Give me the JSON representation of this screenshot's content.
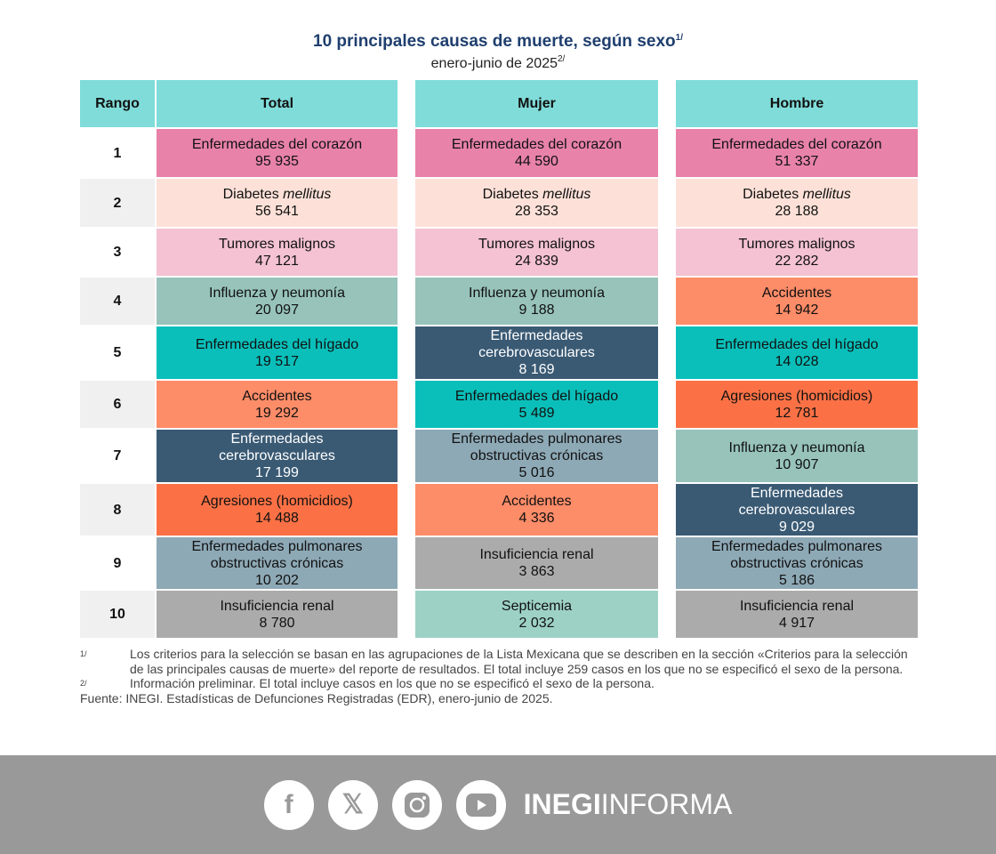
{
  "title": "10 principales causas de muerte, según sexo",
  "title_sup": "1/",
  "subtitle": "enero-junio de 2025",
  "subtitle_sup": "2/",
  "headers": {
    "rank": "Rango",
    "total": "Total",
    "mujer": "Mujer",
    "hombre": "Hombre"
  },
  "colors": {
    "corazon": "#e882a8",
    "diabetes": "#fde1d8",
    "tumores": "#f4c2d2",
    "influenza": "#97c3bb",
    "higado": "#0abfba",
    "cerebro": "#3a5a74",
    "accidentes": "#fd8c68",
    "agresiones": "#fb7145",
    "pulmonares": "#8ea9b6",
    "renal": "#ababab",
    "septicemia": "#9dd1c6",
    "header": "#80dcd9"
  },
  "rows": [
    {
      "rank": "1",
      "total": {
        "label": "Enfermedades del corazón",
        "value": "95 935",
        "cat": "corazon"
      },
      "mujer": {
        "label": "Enfermedades del corazón",
        "value": "44 590",
        "cat": "corazon"
      },
      "hombre": {
        "label": "Enfermedades del corazón",
        "value": "51 337",
        "cat": "corazon"
      }
    },
    {
      "rank": "2",
      "total": {
        "label": "Diabetes ",
        "italic": "mellitus",
        "value": "56 541",
        "cat": "diabetes"
      },
      "mujer": {
        "label": "Diabetes ",
        "italic": "mellitus",
        "value": "28 353",
        "cat": "diabetes"
      },
      "hombre": {
        "label": "Diabetes ",
        "italic": "mellitus",
        "value": "28 188",
        "cat": "diabetes"
      }
    },
    {
      "rank": "3",
      "total": {
        "label": "Tumores malignos",
        "value": "47 121",
        "cat": "tumores"
      },
      "mujer": {
        "label": "Tumores malignos",
        "value": "24 839",
        "cat": "tumores"
      },
      "hombre": {
        "label": "Tumores malignos",
        "value": "22 282",
        "cat": "tumores"
      }
    },
    {
      "rank": "4",
      "total": {
        "label": "Influenza y neumonía",
        "value": "20 097",
        "cat": "influenza"
      },
      "mujer": {
        "label": "Influenza y neumonía",
        "value": "9 188",
        "cat": "influenza"
      },
      "hombre": {
        "label": "Accidentes",
        "value": "14 942",
        "cat": "accidentes"
      }
    },
    {
      "rank": "5",
      "total": {
        "label": "Enfermedades del hígado",
        "value": "19 517",
        "cat": "higado"
      },
      "mujer": {
        "label": "Enfermedades\ncerebrovasculares",
        "value": "8 169",
        "cat": "cerebro"
      },
      "hombre": {
        "label": "Enfermedades del hígado",
        "value": "14 028",
        "cat": "higado"
      }
    },
    {
      "rank": "6",
      "total": {
        "label": "Accidentes",
        "value": "19 292",
        "cat": "accidentes"
      },
      "mujer": {
        "label": "Enfermedades del hígado",
        "value": "5 489",
        "cat": "higado"
      },
      "hombre": {
        "label": "Agresiones (homicidios)",
        "value": "12 781",
        "cat": "agresiones"
      }
    },
    {
      "rank": "7",
      "total": {
        "label": "Enfermedades\ncerebrovasculares",
        "value": "17 199",
        "cat": "cerebro"
      },
      "mujer": {
        "label": "Enfermedades pulmonares\nobstructivas crónicas",
        "value": "5 016",
        "cat": "pulmonares"
      },
      "hombre": {
        "label": "Influenza y neumonía",
        "value": "10 907",
        "cat": "influenza"
      }
    },
    {
      "rank": "8",
      "total": {
        "label": "Agresiones (homicidios)",
        "value": "14 488",
        "cat": "agresiones"
      },
      "mujer": {
        "label": "Accidentes",
        "value": "4 336",
        "cat": "accidentes"
      },
      "hombre": {
        "label": "Enfermedades\ncerebrovasculares",
        "value": "9 029",
        "cat": "cerebro"
      }
    },
    {
      "rank": "9",
      "total": {
        "label": "Enfermedades pulmonares\nobstructivas crónicas",
        "value": "10 202",
        "cat": "pulmonares"
      },
      "mujer": {
        "label": "Insuficiencia renal",
        "value": "3 863",
        "cat": "renal"
      },
      "hombre": {
        "label": "Enfermedades pulmonares\nobstructivas crónicas",
        "value": "5 186",
        "cat": "pulmonares"
      }
    },
    {
      "rank": "10",
      "total": {
        "label": "Insuficiencia renal",
        "value": "8 780",
        "cat": "renal"
      },
      "mujer": {
        "label": "Septicemia",
        "value": "2 032",
        "cat": "septicemia"
      },
      "hombre": {
        "label": "Insuficiencia renal",
        "value": "4 917",
        "cat": "renal"
      }
    }
  ],
  "notes": [
    {
      "mark": "1/",
      "text": "Los criterios para la selección se basan en las agrupaciones de la Lista Mexicana que se describen en la sección «Criterios para la selección de las principales causas de muerte» del reporte de resultados. El total incluye 259 casos en los que no se especificó el sexo de la persona."
    },
    {
      "mark": "2/",
      "text": "Información preliminar. El total incluye casos en los que no se especificó el sexo de la persona."
    }
  ],
  "source": "Fuente: INEGI. Estadísticas de Defunciones Registradas (EDR), enero-junio de 2025.",
  "footer": {
    "brand_bold": "INEGI",
    "brand_light": "INFORMA",
    "social": [
      "facebook-icon",
      "x-icon",
      "instagram-icon",
      "youtube-icon"
    ]
  }
}
